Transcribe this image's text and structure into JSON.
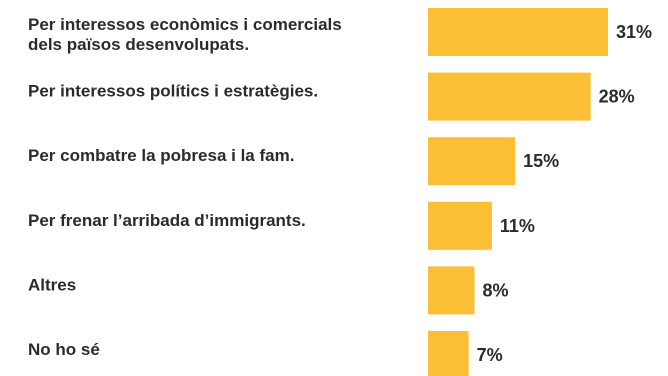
{
  "chart_data": {
    "type": "bar",
    "orientation": "horizontal",
    "title": "",
    "xlabel": "",
    "ylabel": "",
    "categories": [
      [
        "Per interessos econòmics i comercials",
        "dels països desenvolupats."
      ],
      [
        "Per interessos polítics i estratègies."
      ],
      [
        "Per combatre la pobresa i la fam."
      ],
      [
        "Per frenar l’arribada d’immigrants."
      ],
      [
        "Altres"
      ],
      [
        "No ho sé"
      ]
    ],
    "values": [
      31,
      28,
      15,
      11,
      8,
      7
    ],
    "value_labels": [
      "31%",
      "28%",
      "15%",
      "11%",
      "8%",
      "7%"
    ],
    "bar_color": "#FBBF36",
    "text_color": "#2b2b2b",
    "grid": false,
    "legend": "none"
  }
}
